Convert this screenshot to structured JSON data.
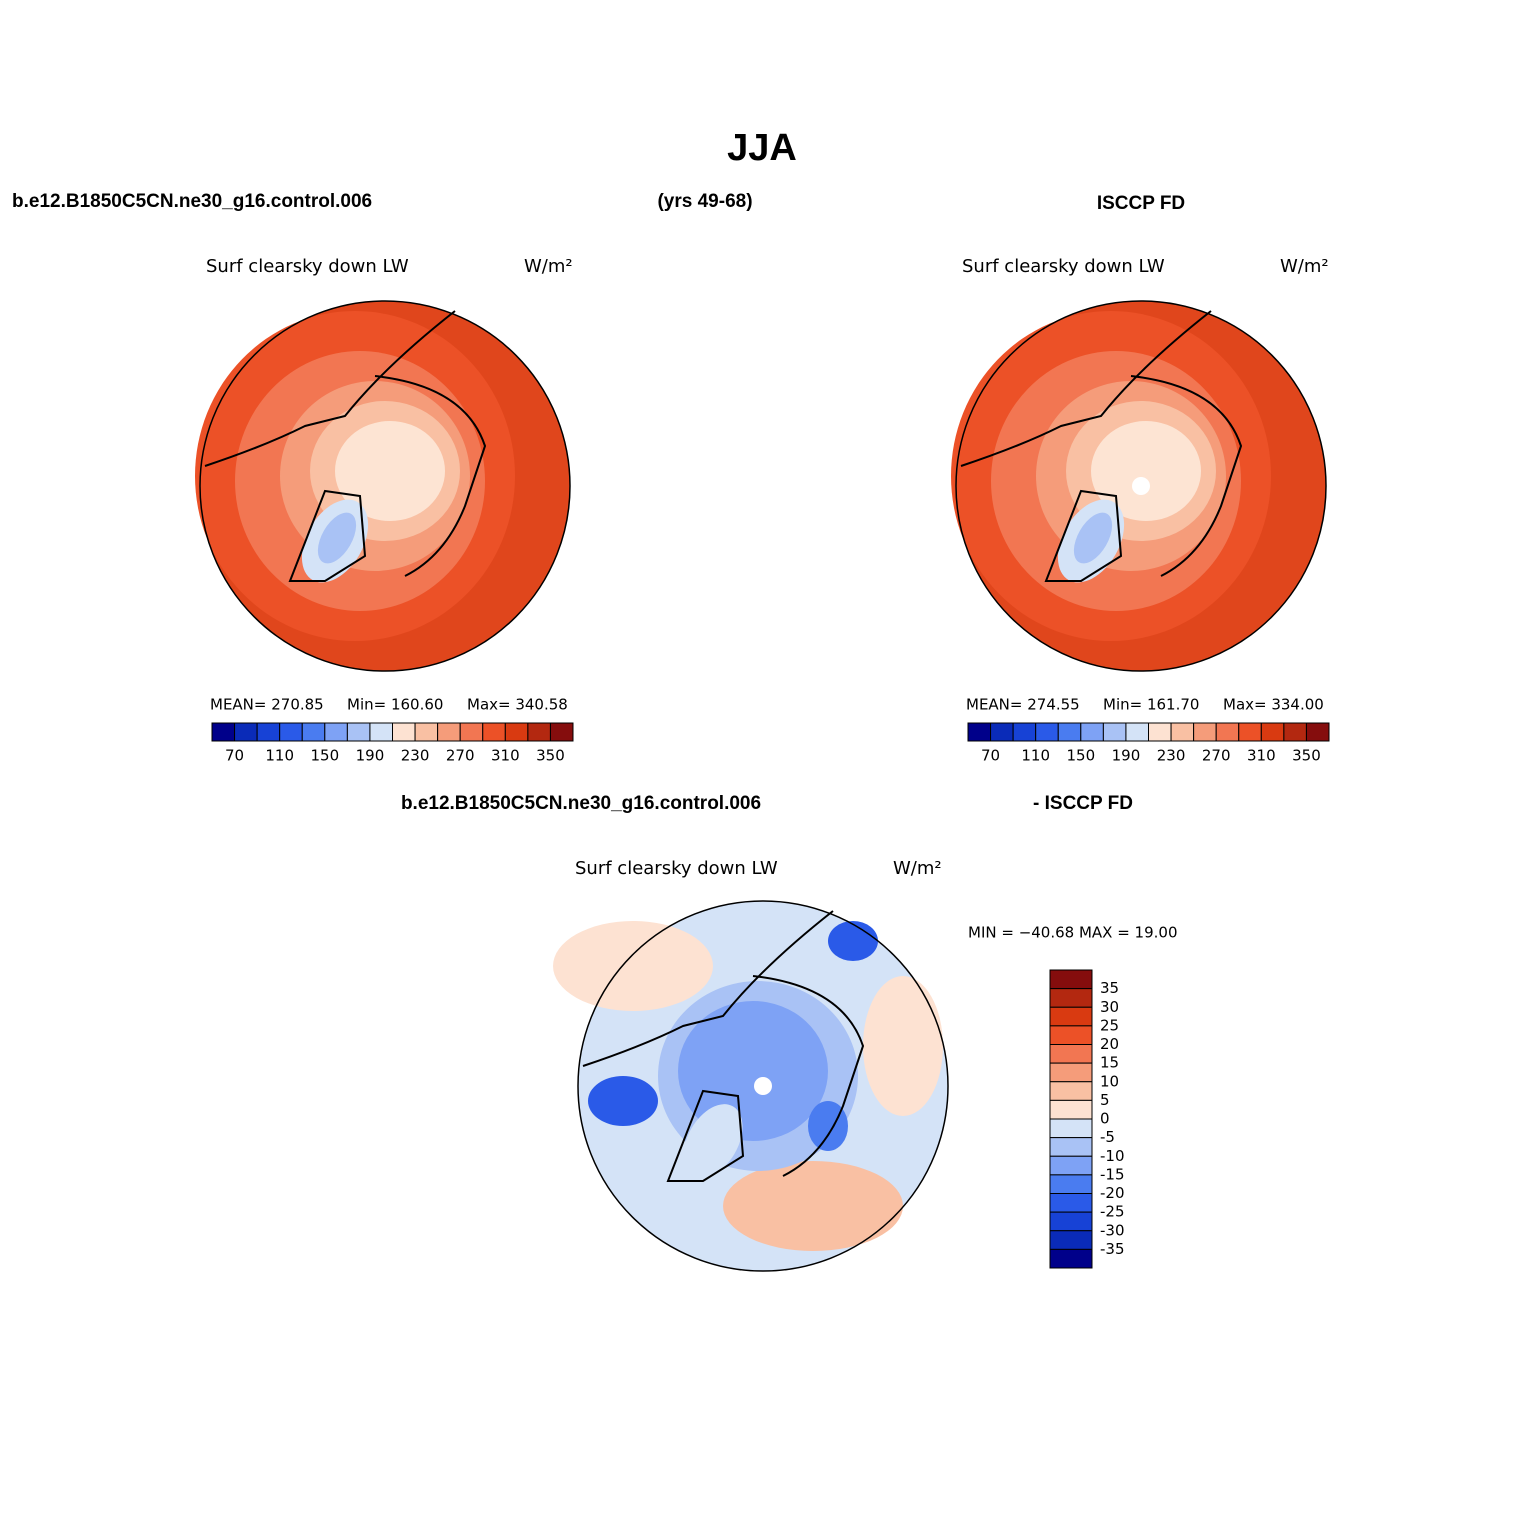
{
  "header": {
    "title": "JJA",
    "left": "b.e12.B1850C5CN.ne30_g16.control.006",
    "center": "(yrs 49-68)",
    "right": "ISCCP FD"
  },
  "panels": [
    {
      "title": "Surf clearsky down LW",
      "units": "W/m²",
      "stats": [
        "MEAN= 270.85",
        "Min= 160.60",
        "Max= 340.58"
      ],
      "colorbar": {
        "labels": [
          70,
          110,
          150,
          190,
          230,
          270,
          310,
          350
        ],
        "colors": [
          "#00008a",
          "#0a2bb8",
          "#1742d6",
          "#2a5ae8",
          "#4a7cf0",
          "#7ea2f5",
          "#a9c2f5",
          "#d4e3f7",
          "#fde2d2",
          "#f9c0a3",
          "#f59c7a",
          "#f27652",
          "#ec5127",
          "#d93a11",
          "#b32810",
          "#850d0d"
        ]
      }
    },
    {
      "title": "Surf clearsky down LW",
      "units": "W/m²",
      "stats": [
        "MEAN= 274.55",
        "Min= 161.70",
        "Max= 334.00"
      ],
      "colorbar": {
        "labels": [
          70,
          110,
          150,
          190,
          230,
          270,
          310,
          350
        ],
        "colors": [
          "#00008a",
          "#0a2bb8",
          "#1742d6",
          "#2a5ae8",
          "#4a7cf0",
          "#7ea2f5",
          "#a9c2f5",
          "#d4e3f7",
          "#fde2d2",
          "#f9c0a3",
          "#f59c7a",
          "#f27652",
          "#ec5127",
          "#d93a11",
          "#b32810",
          "#850d0d"
        ]
      }
    }
  ],
  "difference": {
    "left": "b.e12.B1850C5CN.ne30_g16.control.006",
    "right": "- ISCCP FD",
    "title": "Surf clearsky down LW",
    "units": "W/m²",
    "stats": "MIN = −40.68 MAX =  19.00",
    "colorbar": {
      "labels": [
        35,
        30,
        25,
        20,
        15,
        10,
        5,
        0,
        -5,
        -10,
        -15,
        -20,
        -25,
        -30,
        -35
      ],
      "colors": [
        "#850d0d",
        "#b32810",
        "#d93a11",
        "#ec5127",
        "#f27652",
        "#f59c7a",
        "#f9c0a3",
        "#fde2d2",
        "#d4e3f7",
        "#a9c2f5",
        "#7ea2f5",
        "#4a7cf0",
        "#2a5ae8",
        "#1742d6",
        "#0a2bb8",
        "#00008a"
      ]
    }
  }
}
